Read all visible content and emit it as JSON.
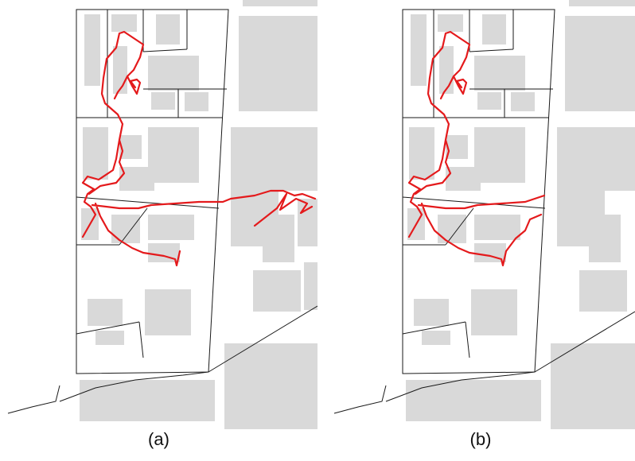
{
  "figure": {
    "panels": [
      {
        "id": "a",
        "caption": "(a)",
        "variant": "full-trajectory"
      },
      {
        "id": "b",
        "caption": "(b)",
        "variant": "filtered-trajectory"
      }
    ],
    "colors": {
      "trajectory": "#e41a1c",
      "building": "#d9d9d9",
      "parcel_boundary": "#1a1a1a",
      "background": "#ffffff"
    }
  }
}
